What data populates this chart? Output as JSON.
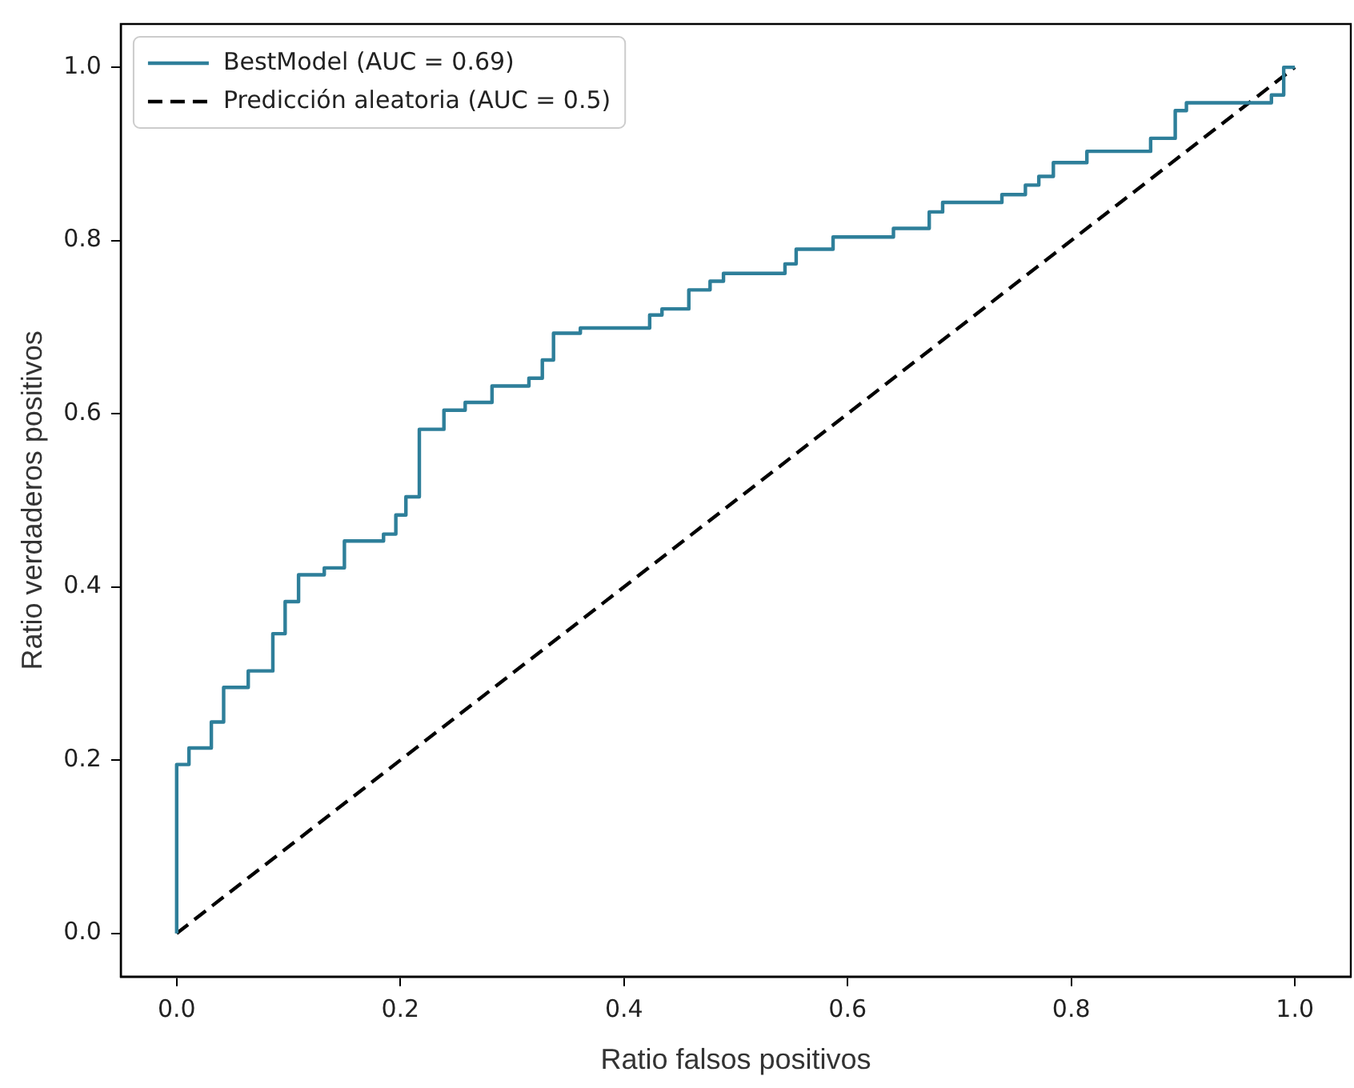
{
  "chart_data": {
    "type": "step",
    "xlabel": "Ratio falsos positivos",
    "ylabel": "Ratio verdaderos positivos",
    "xlim": [
      -0.05,
      1.05
    ],
    "ylim": [
      -0.05,
      1.05
    ],
    "xticks": [
      {
        "value": 0,
        "label": "0.0"
      },
      {
        "value": 0.2,
        "label": "0.2"
      },
      {
        "value": 0.4,
        "label": "0.4"
      },
      {
        "value": 0.6,
        "label": "0.6"
      },
      {
        "value": 0.8,
        "label": "0.8"
      },
      {
        "value": 1,
        "label": "1.0"
      }
    ],
    "yticks": [
      {
        "value": 0,
        "label": "0.0"
      },
      {
        "value": 0.2,
        "label": "0.2"
      },
      {
        "value": 0.4,
        "label": "0.4"
      },
      {
        "value": 0.6,
        "label": "0.6"
      },
      {
        "value": 0.8,
        "label": "0.8"
      },
      {
        "value": 1,
        "label": "1.0"
      }
    ],
    "grid": false,
    "legend": "top left",
    "marker": "none",
    "series": [
      {
        "name": "BestModel (AUC = 0.69)",
        "color": "#2e7f9a",
        "line_style": "solid",
        "x": [
          0,
          0,
          0.011,
          0.031,
          0.042,
          0.064,
          0.086,
          0.097,
          0.109,
          0.132,
          0.15,
          0.185,
          0.196,
          0.205,
          0.217,
          0.239,
          0.258,
          0.282,
          0.315,
          0.327,
          0.337,
          0.361,
          0.423,
          0.434,
          0.458,
          0.477,
          0.489,
          0.544,
          0.554,
          0.587,
          0.641,
          0.673,
          0.685,
          0.738,
          0.759,
          0.771,
          0.784,
          0.814,
          0.871,
          0.893,
          0.903,
          0.979,
          0.99,
          1
        ],
        "values": [
          0,
          0.18,
          0.195,
          0.214,
          0.244,
          0.284,
          0.303,
          0.346,
          0.383,
          0.414,
          0.422,
          0.453,
          0.461,
          0.483,
          0.504,
          0.582,
          0.604,
          0.613,
          0.632,
          0.641,
          0.662,
          0.693,
          0.699,
          0.714,
          0.721,
          0.743,
          0.753,
          0.762,
          0.773,
          0.79,
          0.804,
          0.814,
          0.833,
          0.844,
          0.853,
          0.864,
          0.874,
          0.89,
          0.903,
          0.918,
          0.95,
          0.959,
          0.968,
          1
        ]
      },
      {
        "name": "Predicción aleatoria (AUC = 0.5)",
        "type": "line",
        "color": "#000000",
        "line_style": "dashed",
        "x": [
          0,
          1
        ],
        "values": [
          0,
          1
        ]
      }
    ]
  }
}
